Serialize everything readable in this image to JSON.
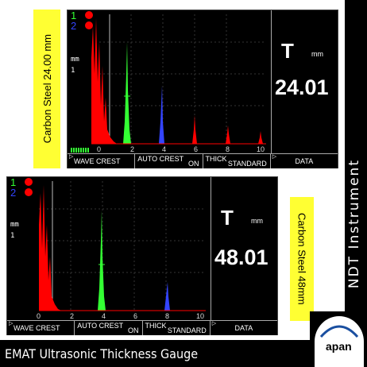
{
  "top_label": "Carbon Steel 24.00 mm",
  "bottom_label": "Carbon Steel 48mm",
  "brand_vertical": "NDT Instrument",
  "bottom_title": "EMAT Ultrasonic Thickness Gauge",
  "logo_text": "apan",
  "colors": {
    "accent_yellow": "#ffff33",
    "echo_red": "#ff0000",
    "gate_green": "#33ff33",
    "gate_blue": "#3344ff"
  },
  "screen1": {
    "ch1": "1",
    "ch2": "2",
    "side_unit": "mm",
    "side_index": "1",
    "t_label": "T",
    "unit": "mm",
    "value": "24.01",
    "x_ticks": [
      "0",
      "2",
      "4",
      "6",
      "8",
      "10"
    ],
    "menu": [
      {
        "top": "WAVE CREST",
        "bottom": ""
      },
      {
        "top": "AUTO CREST",
        "bottom": "ON"
      },
      {
        "top": "THICK",
        "bottom": "STANDARD"
      },
      {
        "top": "",
        "bottom": "",
        "center": "DATA"
      }
    ]
  },
  "screen2": {
    "ch1": "1",
    "ch2": "2",
    "side_unit": "mm",
    "side_index": "1",
    "t_label": "T",
    "unit": "mm",
    "value": "48.01",
    "x_ticks": [
      "0",
      "2",
      "4",
      "6",
      "8",
      "10"
    ],
    "menu": [
      {
        "top": "WAVE CREST",
        "bottom": ""
      },
      {
        "top": "AUTO CREST",
        "bottom": "ON"
      },
      {
        "top": "THICK",
        "bottom": "STANDARD"
      },
      {
        "top": "",
        "bottom": "",
        "center": "DATA"
      }
    ]
  }
}
